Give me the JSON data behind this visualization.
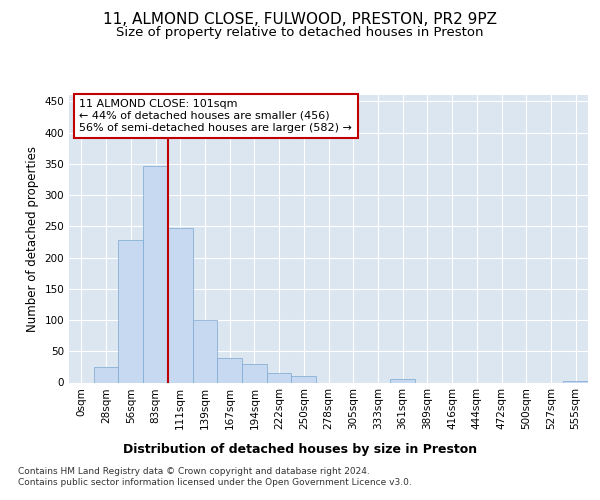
{
  "title1": "11, ALMOND CLOSE, FULWOOD, PRESTON, PR2 9PZ",
  "title2": "Size of property relative to detached houses in Preston",
  "xlabel": "Distribution of detached houses by size in Preston",
  "ylabel": "Number of detached properties",
  "footnote": "Contains HM Land Registry data © Crown copyright and database right 2024.\nContains public sector information licensed under the Open Government Licence v3.0.",
  "bar_labels": [
    "0sqm",
    "28sqm",
    "56sqm",
    "83sqm",
    "111sqm",
    "139sqm",
    "167sqm",
    "194sqm",
    "222sqm",
    "250sqm",
    "278sqm",
    "305sqm",
    "333sqm",
    "361sqm",
    "389sqm",
    "416sqm",
    "444sqm",
    "472sqm",
    "500sqm",
    "527sqm",
    "555sqm"
  ],
  "bar_values": [
    0,
    25,
    228,
    347,
    247,
    100,
    40,
    30,
    16,
    11,
    0,
    0,
    0,
    5,
    0,
    0,
    0,
    0,
    0,
    0,
    3
  ],
  "bar_color": "#c6d9f0",
  "bar_edge_color": "#7ba7d1",
  "vline_color": "#c00000",
  "vline_x": 4.0,
  "annotation_text": "11 ALMOND CLOSE: 101sqm\n← 44% of detached houses are smaller (456)\n56% of semi-detached houses are larger (582) →",
  "annotation_box_facecolor": "#ffffff",
  "annotation_box_edgecolor": "#c00000",
  "ylim": [
    0,
    460
  ],
  "yticks": [
    0,
    50,
    100,
    150,
    200,
    250,
    300,
    350,
    400,
    450
  ],
  "plot_bg_color": "#dce6f1",
  "fig_bg_color": "#ffffff",
  "grid_color": "#ffffff",
  "title1_fontsize": 11,
  "title2_fontsize": 9.5,
  "xlabel_fontsize": 9,
  "ylabel_fontsize": 8.5,
  "tick_fontsize": 7.5,
  "footnote_fontsize": 6.5
}
